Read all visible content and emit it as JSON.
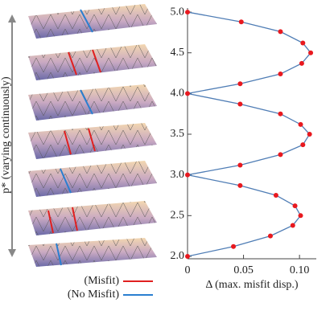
{
  "chart_data": {
    "type": "line",
    "xlabel": "Δ (max. misfit disp.)",
    "x": [
      0,
      0.048,
      0.083,
      0.103,
      0.11,
      0.102,
      0.083,
      0.047,
      0,
      0.047,
      0.083,
      0.101,
      0.109,
      0.103,
      0.083,
      0.047,
      0,
      0.047,
      0.079,
      0.096,
      0.101,
      0.094,
      0.074,
      0.041,
      0
    ],
    "values": [
      5.0,
      4.88,
      4.76,
      4.62,
      4.5,
      4.37,
      4.24,
      4.12,
      4.0,
      3.87,
      3.75,
      3.62,
      3.5,
      3.37,
      3.25,
      3.12,
      3.0,
      2.87,
      2.75,
      2.62,
      2.5,
      2.38,
      2.25,
      2.12,
      2.0
    ],
    "color": "#4f7db5",
    "marker_color": "#e8191f",
    "xlim": [
      0,
      0.115
    ],
    "ylim": [
      1.97,
      5.05
    ],
    "xticks": [
      0,
      0.05,
      {
        "value": 0.1,
        "label": "0.10"
      }
    ],
    "yticks": [
      {
        "value": 2,
        "label": "2.0"
      },
      2.5,
      {
        "value": 3,
        "label": "3.0"
      },
      3.5,
      {
        "value": 4,
        "label": "4.0"
      },
      4.5,
      {
        "value": 5,
        "label": "5.0"
      }
    ]
  },
  "side_label": "p* (varying continuously)",
  "legend": [
    {
      "name": "(Misfit)",
      "color": "#e02020"
    },
    {
      "name": "(No Misfit)",
      "color": "#2a7fd0"
    }
  ]
}
